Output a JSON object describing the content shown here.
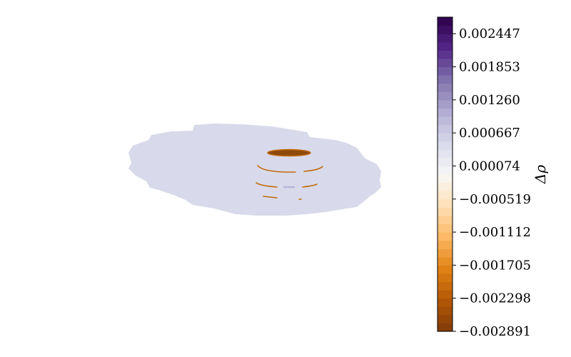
{
  "chart_data": {
    "type": "heatmap",
    "title": "",
    "xlabel": "",
    "ylabel": "",
    "axes_visible": false,
    "grid": false,
    "colormap": "PuOr",
    "colorbar": {
      "label": "Δρ",
      "placement": "right",
      "range": [
        -0.002891,
        0.002744
      ],
      "ticks": [
        -0.002891,
        -0.002298,
        -0.001705,
        -0.001112,
        -0.000519,
        7.4e-05,
        0.000667,
        0.00126,
        0.001853,
        0.002447
      ],
      "tick_labels": [
        "−0.002891",
        "−0.002298",
        "−0.001705",
        "−0.001112",
        "−0.000519",
        "0.000074",
        "0.000667",
        "0.001260",
        "0.001853",
        "0.002447"
      ],
      "levels": 38
    },
    "fields": [
      {
        "name": "background-slab",
        "value": 0.00095,
        "color": "#d8daeb"
      },
      {
        "name": "top-disc",
        "value": -0.00285,
        "color": "#8e4a0b"
      },
      {
        "name": "ring-contours",
        "value": -0.0021,
        "color": "#c46a09"
      },
      {
        "name": "center-blip",
        "value": 0.0011,
        "color": "#b9b5d8"
      }
    ]
  }
}
